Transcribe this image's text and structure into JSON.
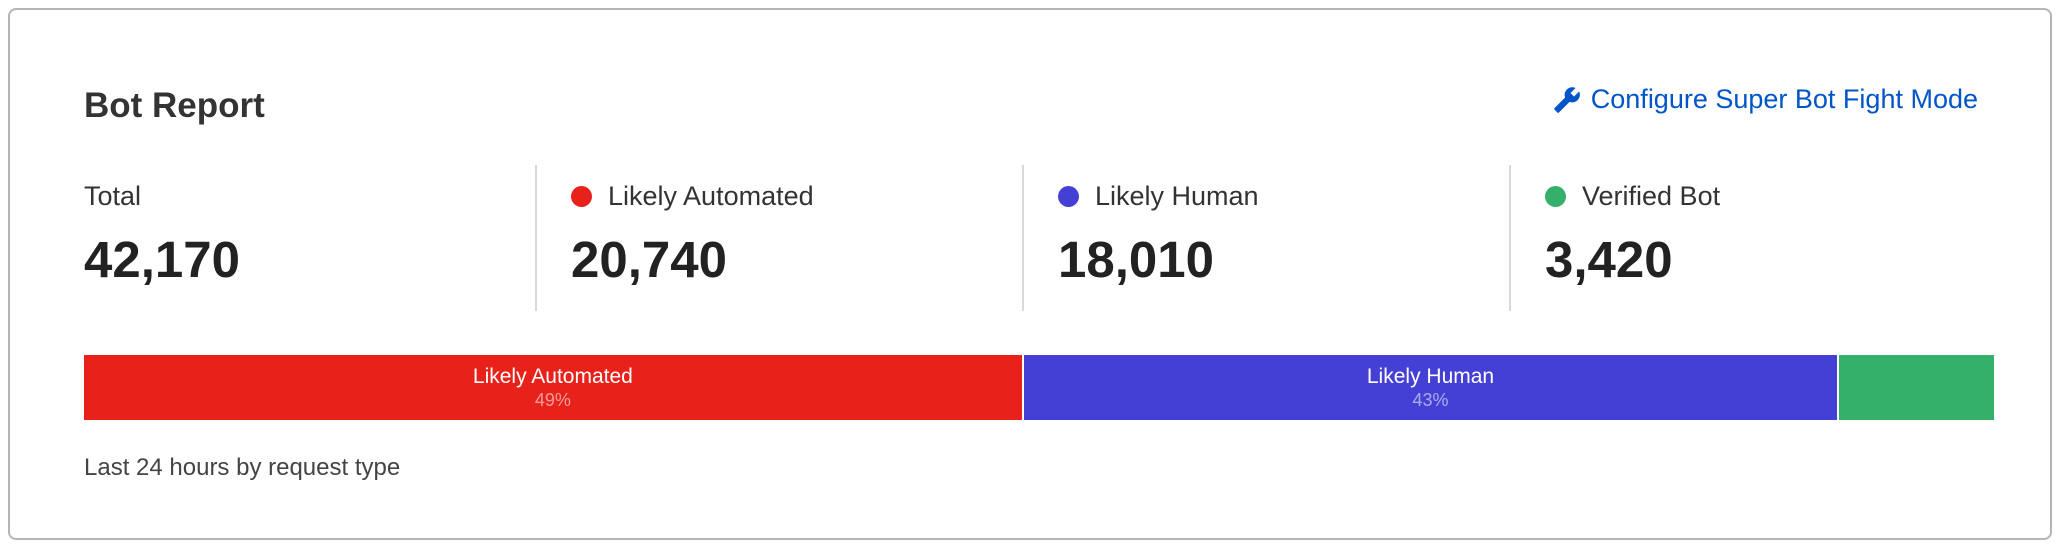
{
  "header": {
    "title": "Bot Report",
    "configure_link": {
      "label": "Configure Super Bot Fight Mode",
      "icon": "wrench-icon",
      "color": "#0055c8"
    }
  },
  "stats": [
    {
      "label": "Total",
      "value": "42,170",
      "dot_color": null
    },
    {
      "label": "Likely Automated",
      "value": "20,740",
      "dot_color": "#e8221b"
    },
    {
      "label": "Likely Human",
      "value": "18,010",
      "dot_color": "#4540d5"
    },
    {
      "label": "Verified Bot",
      "value": "3,420",
      "dot_color": "#34b06a"
    }
  ],
  "bar": [
    {
      "label": "Likely Automated",
      "percent_label": "49%",
      "percent": 49.2,
      "color": "#e8221b"
    },
    {
      "label": "Likely Human",
      "percent_label": "43%",
      "percent": 42.7,
      "color": "#4540d5"
    },
    {
      "label": "",
      "percent_label": "",
      "percent": 8.1,
      "color": "#34b06a"
    }
  ],
  "footnote": "Last 24 hours by request type"
}
